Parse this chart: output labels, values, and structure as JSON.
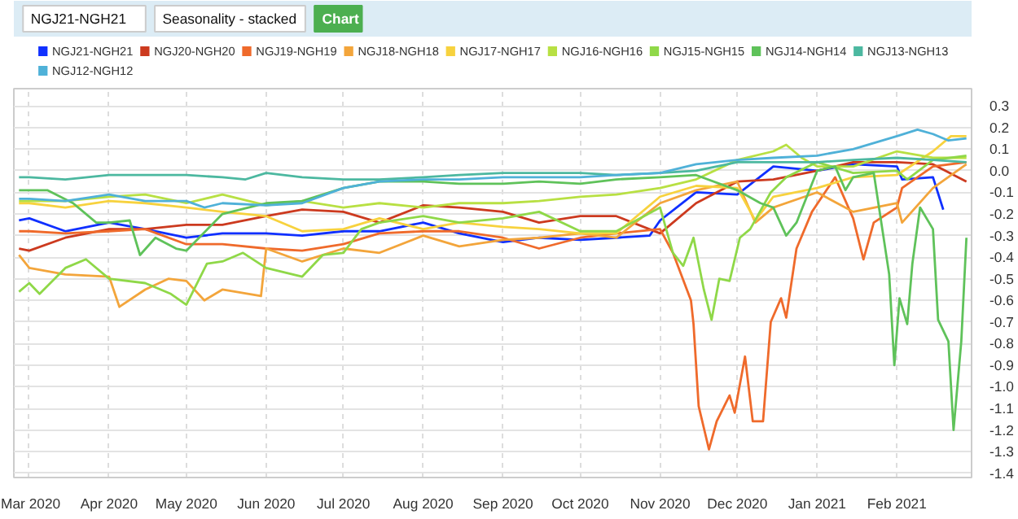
{
  "chart_data": {
    "type": "line",
    "annotations": [
      "NGJ21-NGH21",
      "Seasonality - stacked",
      "Chart"
    ],
    "xlim": [
      "2020-02-24",
      "2021-03-02"
    ],
    "xticks": [
      {
        "value": "2020-03-01",
        "label": "Mar 2020"
      },
      {
        "value": "2020-04-01",
        "label": "Apr 2020"
      },
      {
        "value": "2020-05-01",
        "label": "May 2020"
      },
      {
        "value": "2020-06-01",
        "label": "Jun 2020"
      },
      {
        "value": "2020-07-01",
        "label": "Jul 2020"
      },
      {
        "value": "2020-08-01",
        "label": "Aug 2020"
      },
      {
        "value": "2020-09-01",
        "label": "Sep 2020"
      },
      {
        "value": "2020-10-01",
        "label": "Oct 2020"
      },
      {
        "value": "2020-11-01",
        "label": "Nov 2020"
      },
      {
        "value": "2020-12-01",
        "label": "Dec 2020"
      },
      {
        "value": "2021-01-01",
        "label": "Jan 2021"
      },
      {
        "value": "2021-02-01",
        "label": "Feb 2021"
      }
    ],
    "ylim": [
      -1.42,
      0.38
    ],
    "yticks": [
      -1.4,
      -1.3,
      -1.2,
      -1.1,
      {
        "value": -1.0,
        "label": "-1.0"
      },
      -0.9,
      -0.8,
      -0.7,
      -0.6,
      -0.5,
      -0.4,
      -0.3,
      -0.2,
      -0.1,
      {
        "value": 0,
        "label": "0.0"
      },
      0.1,
      0.2,
      0.3
    ],
    "grid": true,
    "legend": "top",
    "line_style": "solid",
    "series": [
      {
        "name": "NGJ21-NGH21",
        "color": "#1030ff",
        "x": [
          "2020-02-26",
          "2020-03-01",
          "2020-03-15",
          "2020-04-01",
          "2020-04-15",
          "2020-05-01",
          "2020-05-15",
          "2020-06-01",
          "2020-06-15",
          "2020-07-01",
          "2020-07-15",
          "2020-08-01",
          "2020-08-15",
          "2020-09-01",
          "2020-09-15",
          "2020-10-01",
          "2020-10-15",
          "2020-10-28",
          "2020-11-01",
          "2020-11-15",
          "2020-12-01",
          "2020-12-15",
          "2021-01-01",
          "2021-01-15",
          "2021-02-01",
          "2021-02-03",
          "2021-02-15",
          "2021-02-19"
        ],
        "values": [
          -0.23,
          -0.22,
          -0.28,
          -0.24,
          -0.27,
          -0.31,
          -0.29,
          -0.29,
          -0.3,
          -0.28,
          -0.28,
          -0.24,
          -0.29,
          -0.33,
          -0.31,
          -0.32,
          -0.31,
          -0.3,
          -0.23,
          -0.1,
          -0.11,
          0.02,
          0.0,
          0.03,
          0.02,
          -0.04,
          -0.03,
          -0.18
        ]
      },
      {
        "name": "NGJ20-NGH20",
        "color": "#cc3a1f",
        "x": [
          "2020-02-26",
          "2020-03-01",
          "2020-03-15",
          "2020-04-01",
          "2020-04-15",
          "2020-05-01",
          "2020-05-15",
          "2020-06-01",
          "2020-06-15",
          "2020-07-01",
          "2020-07-15",
          "2020-08-01",
          "2020-08-15",
          "2020-09-01",
          "2020-09-15",
          "2020-10-01",
          "2020-10-15",
          "2020-11-01",
          "2020-11-15",
          "2020-12-01",
          "2020-12-15",
          "2021-01-01",
          "2021-01-15",
          "2021-02-01",
          "2021-02-15",
          "2021-02-28"
        ],
        "values": [
          -0.36,
          -0.37,
          -0.31,
          -0.27,
          -0.27,
          -0.25,
          -0.25,
          -0.21,
          -0.18,
          -0.19,
          -0.24,
          -0.16,
          -0.17,
          -0.19,
          -0.24,
          -0.21,
          -0.21,
          -0.29,
          -0.15,
          -0.05,
          -0.04,
          0.0,
          0.04,
          0.04,
          0.03,
          -0.05
        ]
      },
      {
        "name": "NGJ19-NGH19",
        "color": "#ef6a2b",
        "x": [
          "2020-02-26",
          "2020-03-01",
          "2020-03-15",
          "2020-04-01",
          "2020-04-15",
          "2020-05-01",
          "2020-05-15",
          "2020-06-01",
          "2020-06-15",
          "2020-07-01",
          "2020-07-15",
          "2020-08-01",
          "2020-08-15",
          "2020-09-01",
          "2020-09-15",
          "2020-10-01",
          "2020-10-15",
          "2020-11-01",
          "2020-11-06",
          "2020-11-13",
          "2020-11-14",
          "2020-11-16",
          "2020-11-20",
          "2020-11-23",
          "2020-11-28",
          "2020-11-30",
          "2020-12-04",
          "2020-12-07",
          "2020-12-11",
          "2020-12-14",
          "2020-12-18",
          "2020-12-20",
          "2020-12-24",
          "2020-12-30",
          "2021-01-08",
          "2021-01-15",
          "2021-01-19",
          "2021-01-23",
          "2021-02-01",
          "2021-02-03",
          "2021-02-15",
          "2021-02-28"
        ],
        "values": [
          -0.28,
          -0.28,
          -0.29,
          -0.28,
          -0.27,
          -0.34,
          -0.34,
          -0.36,
          -0.37,
          -0.34,
          -0.29,
          -0.28,
          -0.28,
          -0.31,
          -0.36,
          -0.31,
          -0.29,
          -0.27,
          -0.38,
          -0.6,
          -0.71,
          -1.09,
          -1.29,
          -1.16,
          -1.04,
          -1.12,
          -0.86,
          -1.16,
          -1.16,
          -0.7,
          -0.59,
          -0.68,
          -0.36,
          -0.19,
          -0.03,
          -0.22,
          -0.41,
          -0.24,
          -0.17,
          -0.08,
          0.02,
          0.04
        ]
      },
      {
        "name": "NGJ18-NGH18",
        "color": "#f3a53b",
        "x": [
          "2020-02-26",
          "2020-03-01",
          "2020-03-15",
          "2020-04-01",
          "2020-04-05",
          "2020-04-15",
          "2020-04-24",
          "2020-05-01",
          "2020-05-08",
          "2020-05-15",
          "2020-05-30",
          "2020-06-01",
          "2020-06-15",
          "2020-07-01",
          "2020-07-15",
          "2020-08-01",
          "2020-08-15",
          "2020-09-01",
          "2020-09-15",
          "2020-10-01",
          "2020-10-15",
          "2020-11-01",
          "2020-11-15",
          "2020-12-01",
          "2020-12-08",
          "2020-12-15",
          "2021-01-01",
          "2021-01-15",
          "2021-02-01",
          "2021-02-03",
          "2021-02-15",
          "2021-02-28"
        ],
        "values": [
          -0.39,
          -0.45,
          -0.48,
          -0.49,
          -0.63,
          -0.55,
          -0.5,
          -0.51,
          -0.6,
          -0.55,
          -0.58,
          -0.36,
          -0.42,
          -0.36,
          -0.38,
          -0.3,
          -0.35,
          -0.32,
          -0.31,
          -0.29,
          -0.31,
          -0.15,
          -0.09,
          -0.05,
          -0.24,
          -0.17,
          -0.1,
          -0.19,
          -0.15,
          -0.24,
          -0.08,
          0.03
        ]
      },
      {
        "name": "NGJ17-NGH17",
        "color": "#f7d23e",
        "x": [
          "2020-02-26",
          "2020-03-01",
          "2020-03-15",
          "2020-04-01",
          "2020-04-15",
          "2020-05-01",
          "2020-05-15",
          "2020-06-01",
          "2020-06-15",
          "2020-07-01",
          "2020-07-15",
          "2020-08-01",
          "2020-08-15",
          "2020-09-01",
          "2020-09-15",
          "2020-10-01",
          "2020-10-15",
          "2020-11-01",
          "2020-11-15",
          "2020-12-01",
          "2020-12-08",
          "2020-12-15",
          "2021-01-01",
          "2021-01-15",
          "2021-02-01",
          "2021-02-15",
          "2021-02-22",
          "2021-02-28"
        ],
        "values": [
          -0.15,
          -0.15,
          -0.17,
          -0.14,
          -0.15,
          -0.17,
          -0.19,
          -0.21,
          -0.28,
          -0.27,
          -0.22,
          -0.27,
          -0.24,
          -0.26,
          -0.27,
          -0.29,
          -0.29,
          -0.12,
          -0.07,
          -0.08,
          -0.23,
          -0.12,
          -0.08,
          -0.03,
          -0.02,
          0.09,
          0.16,
          0.16
        ]
      },
      {
        "name": "NGJ16-NGH16",
        "color": "#b8e043",
        "x": [
          "2020-02-26",
          "2020-03-01",
          "2020-03-15",
          "2020-04-01",
          "2020-04-15",
          "2020-05-01",
          "2020-05-15",
          "2020-06-01",
          "2020-06-15",
          "2020-07-01",
          "2020-07-15",
          "2020-08-01",
          "2020-08-15",
          "2020-09-01",
          "2020-09-15",
          "2020-10-01",
          "2020-10-15",
          "2020-11-01",
          "2020-11-15",
          "2020-12-01",
          "2020-12-15",
          "2020-12-20",
          "2020-12-26",
          "2021-01-01",
          "2021-01-15",
          "2021-02-01",
          "2021-02-15",
          "2021-02-28"
        ],
        "values": [
          -0.14,
          -0.14,
          -0.14,
          -0.12,
          -0.11,
          -0.15,
          -0.11,
          -0.16,
          -0.14,
          -0.17,
          -0.15,
          -0.17,
          -0.15,
          -0.15,
          -0.14,
          -0.12,
          -0.11,
          -0.08,
          -0.04,
          0.05,
          0.09,
          0.12,
          0.06,
          0.02,
          0.02,
          0.09,
          0.06,
          0.06
        ]
      },
      {
        "name": "NGJ15-NGH15",
        "color": "#8fd848",
        "x": [
          "2020-02-26",
          "2020-03-01",
          "2020-03-05",
          "2020-03-15",
          "2020-03-23",
          "2020-04-01",
          "2020-04-15",
          "2020-04-25",
          "2020-05-01",
          "2020-05-09",
          "2020-05-15",
          "2020-05-23",
          "2020-06-01",
          "2020-06-15",
          "2020-06-23",
          "2020-07-01",
          "2020-07-08",
          "2020-07-15",
          "2020-08-01",
          "2020-08-15",
          "2020-09-01",
          "2020-09-15",
          "2020-10-01",
          "2020-10-15",
          "2020-11-01",
          "2020-11-06",
          "2020-11-10",
          "2020-11-14",
          "2020-11-18",
          "2020-11-21",
          "2020-11-24",
          "2020-11-28",
          "2020-12-02",
          "2020-12-06",
          "2020-12-14",
          "2020-12-20",
          "2021-01-01",
          "2021-01-15",
          "2021-02-01",
          "2021-02-05",
          "2021-02-15",
          "2021-02-28"
        ],
        "values": [
          -0.56,
          -0.52,
          -0.57,
          -0.45,
          -0.41,
          -0.5,
          -0.52,
          -0.57,
          -0.62,
          -0.43,
          -0.42,
          -0.38,
          -0.45,
          -0.49,
          -0.39,
          -0.38,
          -0.27,
          -0.24,
          -0.21,
          -0.24,
          -0.22,
          -0.19,
          -0.28,
          -0.28,
          -0.17,
          -0.38,
          -0.44,
          -0.31,
          -0.55,
          -0.69,
          -0.5,
          -0.51,
          -0.31,
          -0.27,
          -0.1,
          -0.03,
          0.04,
          -0.01,
          0.0,
          -0.04,
          0.05,
          0.07
        ]
      },
      {
        "name": "NGJ14-NGH14",
        "color": "#5fc25a",
        "x": [
          "2020-02-26",
          "2020-03-08",
          "2020-03-18",
          "2020-03-27",
          "2020-04-01",
          "2020-04-09",
          "2020-04-13",
          "2020-04-19",
          "2020-04-27",
          "2020-05-01",
          "2020-05-15",
          "2020-06-01",
          "2020-06-15",
          "2020-07-01",
          "2020-07-15",
          "2020-08-01",
          "2020-08-15",
          "2020-09-01",
          "2020-09-15",
          "2020-10-01",
          "2020-10-15",
          "2020-11-01",
          "2020-11-15",
          "2020-12-01",
          "2020-12-10",
          "2020-12-15",
          "2020-12-20",
          "2020-12-24",
          "2021-01-01",
          "2021-01-08",
          "2021-01-12",
          "2021-01-15",
          "2021-01-23",
          "2021-01-29",
          "2021-01-31",
          "2021-02-02",
          "2021-02-05",
          "2021-02-07",
          "2021-02-10",
          "2021-02-15",
          "2021-02-17",
          "2021-02-21",
          "2021-02-23",
          "2021-02-26",
          "2021-02-28"
        ],
        "values": [
          -0.09,
          -0.09,
          -0.15,
          -0.24,
          -0.24,
          -0.23,
          -0.39,
          -0.31,
          -0.36,
          -0.37,
          -0.2,
          -0.15,
          -0.14,
          -0.08,
          -0.05,
          -0.05,
          -0.06,
          -0.06,
          -0.05,
          -0.06,
          -0.04,
          -0.03,
          -0.02,
          -0.09,
          -0.15,
          -0.17,
          -0.3,
          -0.24,
          0.0,
          0.02,
          -0.09,
          -0.03,
          -0.01,
          -0.48,
          -0.9,
          -0.59,
          -0.71,
          -0.43,
          -0.17,
          -0.27,
          -0.69,
          -0.79,
          -1.2,
          -0.79,
          -0.31
        ]
      },
      {
        "name": "NGJ13-NGH13",
        "color": "#4cb8a0",
        "x": [
          "2020-02-26",
          "2020-03-01",
          "2020-03-15",
          "2020-04-01",
          "2020-04-15",
          "2020-05-01",
          "2020-05-15",
          "2020-05-24",
          "2020-06-01",
          "2020-06-15",
          "2020-07-01",
          "2020-07-15",
          "2020-08-01",
          "2020-08-15",
          "2020-09-01",
          "2020-09-15",
          "2020-10-01",
          "2020-10-15",
          "2020-11-01",
          "2020-11-15",
          "2020-12-01",
          "2020-12-15",
          "2021-01-01",
          "2021-01-15",
          "2021-02-01",
          "2021-02-15",
          "2021-02-28"
        ],
        "values": [
          -0.03,
          -0.03,
          -0.04,
          -0.02,
          -0.02,
          -0.02,
          -0.03,
          -0.04,
          -0.01,
          -0.03,
          -0.04,
          -0.04,
          -0.03,
          -0.02,
          -0.01,
          -0.01,
          -0.01,
          -0.02,
          -0.01,
          0.0,
          0.04,
          0.04,
          0.04,
          0.05,
          0.06,
          0.05,
          0.04
        ]
      },
      {
        "name": "NGJ12-NGH12",
        "color": "#4fb1d8",
        "x": [
          "2020-02-26",
          "2020-03-01",
          "2020-03-15",
          "2020-04-01",
          "2020-04-15",
          "2020-05-01",
          "2020-05-08",
          "2020-05-15",
          "2020-06-01",
          "2020-06-15",
          "2020-07-01",
          "2020-07-15",
          "2020-08-01",
          "2020-08-15",
          "2020-09-01",
          "2020-09-15",
          "2020-10-01",
          "2020-10-15",
          "2020-11-01",
          "2020-11-15",
          "2020-12-01",
          "2020-12-15",
          "2021-01-01",
          "2021-01-15",
          "2021-02-01",
          "2021-02-09",
          "2021-02-15",
          "2021-02-21",
          "2021-02-28"
        ],
        "values": [
          -0.13,
          -0.13,
          -0.14,
          -0.11,
          -0.14,
          -0.14,
          -0.17,
          -0.15,
          -0.16,
          -0.15,
          -0.08,
          -0.05,
          -0.04,
          -0.04,
          -0.03,
          -0.03,
          -0.03,
          -0.02,
          -0.01,
          0.03,
          0.05,
          0.06,
          0.07,
          0.1,
          0.16,
          0.19,
          0.17,
          0.14,
          0.15
        ]
      }
    ]
  }
}
